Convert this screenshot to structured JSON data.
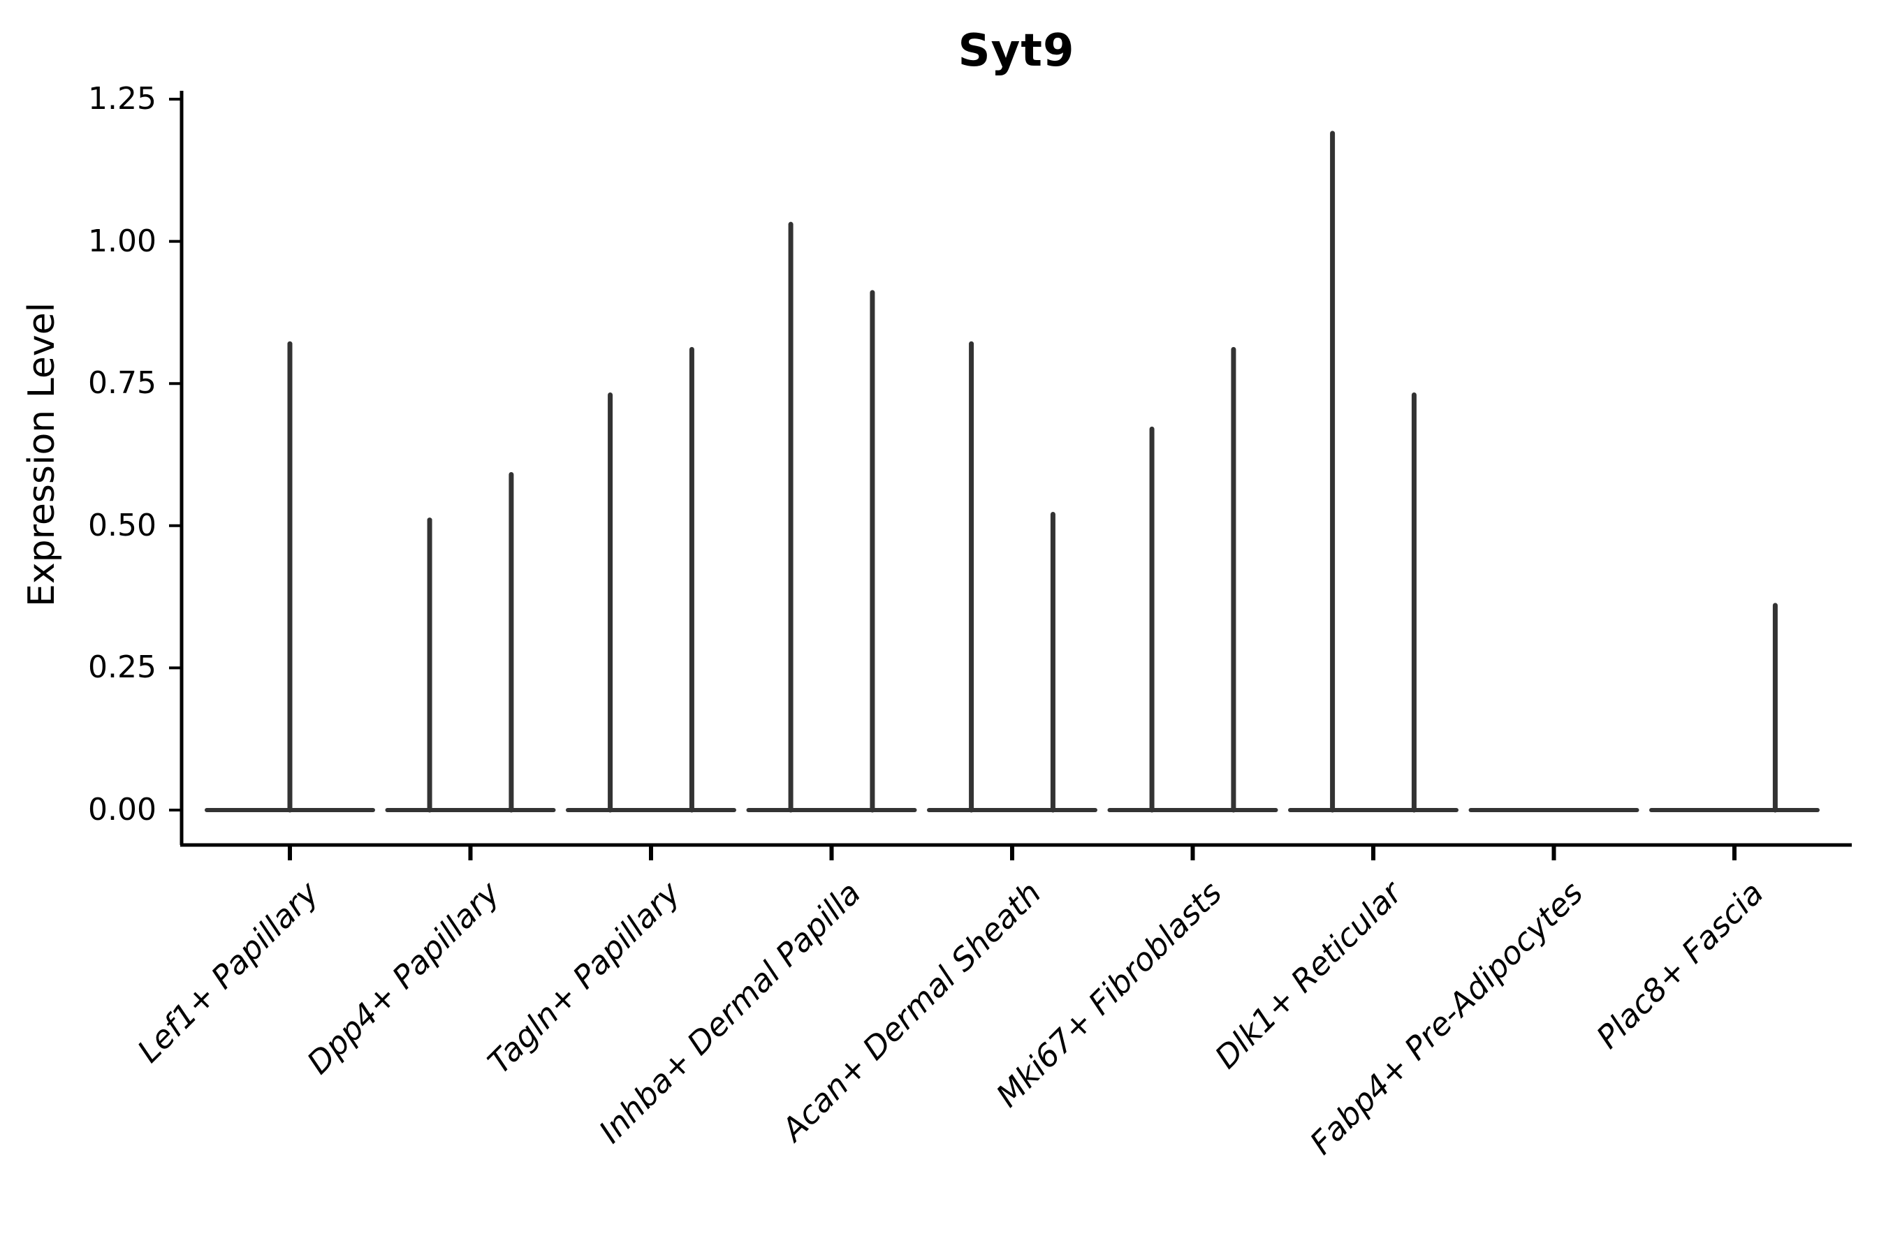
{
  "chart_data": {
    "type": "violin",
    "title": "Syt9",
    "ylabel": "Expression Level",
    "ylim": [
      0,
      1.25
    ],
    "yticks": [
      0.0,
      0.25,
      0.5,
      0.75,
      1.0,
      1.25
    ],
    "ytick_labels": [
      "0.00",
      "0.25",
      "0.50",
      "0.75",
      "1.00",
      "1.25"
    ],
    "grid": "off",
    "legend": "none",
    "violin_color": "#333333",
    "axis_color": "#000000",
    "categories": [
      {
        "label": "Lef1+ Papillary",
        "spikes": [
          {
            "offset": 0.0,
            "max": 0.82
          }
        ]
      },
      {
        "label": "Dpp4+ Papillary",
        "spikes": [
          {
            "offset": -0.226,
            "max": 0.51
          },
          {
            "offset": 0.226,
            "max": 0.59
          }
        ]
      },
      {
        "label": "Tagln+ Papillary",
        "spikes": [
          {
            "offset": -0.226,
            "max": 0.73
          },
          {
            "offset": 0.226,
            "max": 0.81
          }
        ]
      },
      {
        "label": "Inhba+ Dermal Papilla",
        "spikes": [
          {
            "offset": -0.226,
            "max": 1.03
          },
          {
            "offset": 0.226,
            "max": 0.91
          }
        ]
      },
      {
        "label": "Acan+ Dermal Sheath",
        "spikes": [
          {
            "offset": -0.226,
            "max": 0.82
          },
          {
            "offset": 0.226,
            "max": 0.52
          }
        ]
      },
      {
        "label": "Mki67+ Fibroblasts",
        "spikes": [
          {
            "offset": -0.226,
            "max": 0.67
          },
          {
            "offset": 0.226,
            "max": 0.81
          }
        ]
      },
      {
        "label": "Dlk1+ Reticular",
        "spikes": [
          {
            "offset": -0.226,
            "max": 1.19
          },
          {
            "offset": 0.226,
            "max": 0.73
          }
        ]
      },
      {
        "label": "Fabp4+ Pre-Adipocytes",
        "spikes": []
      },
      {
        "label": "Plac8+ Fascia",
        "spikes": [
          {
            "offset": 0.226,
            "max": 0.36
          }
        ]
      }
    ]
  }
}
